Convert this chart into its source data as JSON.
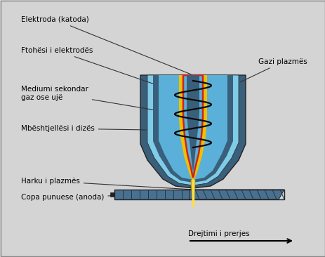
{
  "bg_color": "#d4d4d4",
  "dark_blue": "#3a5f7a",
  "mid_blue": "#4a7fa0",
  "light_blue": "#5ab0d8",
  "sky_blue": "#7ecce8",
  "yellow": "#f0c000",
  "red": "#cc2222",
  "steel_blue": "#4a7090",
  "line_color": "#222222",
  "labels": {
    "elektroda": "Elektroda (katoda)",
    "ftohesi": "Ftohësi i elektrodës",
    "mediumi": "Mediumi sekondar\ngaz ose ujë",
    "mbeshtjellesi": "Mbështjellësi i dizës",
    "gazi": "Gazi plazmës",
    "harku": "Harku i plazmës",
    "copa": "Copa punuese (anoda)",
    "drejtimi": "Drejtimi i prerjes"
  },
  "font_size": 7.5
}
